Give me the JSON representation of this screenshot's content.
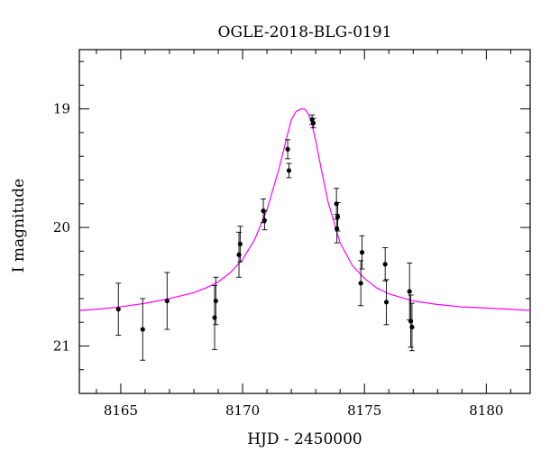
{
  "chart_data": {
    "type": "scatter",
    "title": "OGLE-2018-BLG-0191",
    "xlabel": "HJD - 2450000",
    "ylabel": "I magnitude",
    "xlim": [
      8163.3,
      8181.8
    ],
    "ylim": [
      21.4,
      18.5
    ],
    "y_inverted": true,
    "x_ticks": [
      8165,
      8170,
      8175,
      8180
    ],
    "y_ticks": [
      19,
      20,
      21
    ],
    "grid": false,
    "colors": {
      "model": "#ff00ff",
      "points": "#000000"
    },
    "points": [
      {
        "x": 8164.9,
        "y": 20.69,
        "err": 0.22
      },
      {
        "x": 8165.9,
        "y": 20.86,
        "err": 0.26
      },
      {
        "x": 8166.9,
        "y": 20.62,
        "err": 0.24
      },
      {
        "x": 8168.85,
        "y": 20.76,
        "err": 0.27
      },
      {
        "x": 8168.9,
        "y": 20.62,
        "err": 0.2
      },
      {
        "x": 8169.85,
        "y": 20.23,
        "err": 0.19
      },
      {
        "x": 8169.9,
        "y": 20.14,
        "err": 0.15
      },
      {
        "x": 8170.85,
        "y": 19.86,
        "err": 0.1
      },
      {
        "x": 8170.9,
        "y": 19.94,
        "err": 0.08
      },
      {
        "x": 8171.85,
        "y": 19.34,
        "err": 0.08
      },
      {
        "x": 8171.9,
        "y": 19.52,
        "err": 0.06
      },
      {
        "x": 8172.85,
        "y": 19.09,
        "err": 0.04
      },
      {
        "x": 8172.9,
        "y": 19.12,
        "err": 0.04
      },
      {
        "x": 8173.85,
        "y": 19.8,
        "err": 0.13
      },
      {
        "x": 8173.9,
        "y": 19.91,
        "err": 0.12
      },
      {
        "x": 8173.87,
        "y": 20.01,
        "err": 0.12
      },
      {
        "x": 8174.85,
        "y": 20.47,
        "err": 0.19
      },
      {
        "x": 8174.9,
        "y": 20.21,
        "err": 0.14
      },
      {
        "x": 8175.85,
        "y": 20.31,
        "err": 0.14
      },
      {
        "x": 8175.9,
        "y": 20.63,
        "err": 0.19
      },
      {
        "x": 8176.85,
        "y": 20.54,
        "err": 0.24
      },
      {
        "x": 8176.9,
        "y": 20.79,
        "err": 0.22
      },
      {
        "x": 8176.95,
        "y": 20.84,
        "err": 0.2
      }
    ],
    "model": {
      "x": [
        8163.3,
        8164,
        8165,
        8166,
        8167,
        8168,
        8168.5,
        8169,
        8169.5,
        8170,
        8170.5,
        8171,
        8171.5,
        8171.8,
        8172,
        8172.2,
        8172.4,
        8172.5,
        8172.6,
        8172.8,
        8173,
        8173.2,
        8173.5,
        8174,
        8174.5,
        8175,
        8175.5,
        8176,
        8177,
        8178,
        8179,
        8180,
        8181,
        8181.8
      ],
      "y": [
        20.7,
        20.69,
        20.67,
        20.64,
        20.6,
        20.55,
        20.51,
        20.46,
        20.38,
        20.27,
        20.1,
        19.85,
        19.5,
        19.25,
        19.09,
        19.02,
        19.0,
        19.0,
        19.01,
        19.09,
        19.27,
        19.48,
        19.78,
        20.13,
        20.32,
        20.43,
        20.51,
        20.56,
        20.62,
        20.65,
        20.67,
        20.68,
        20.69,
        20.7
      ]
    }
  }
}
